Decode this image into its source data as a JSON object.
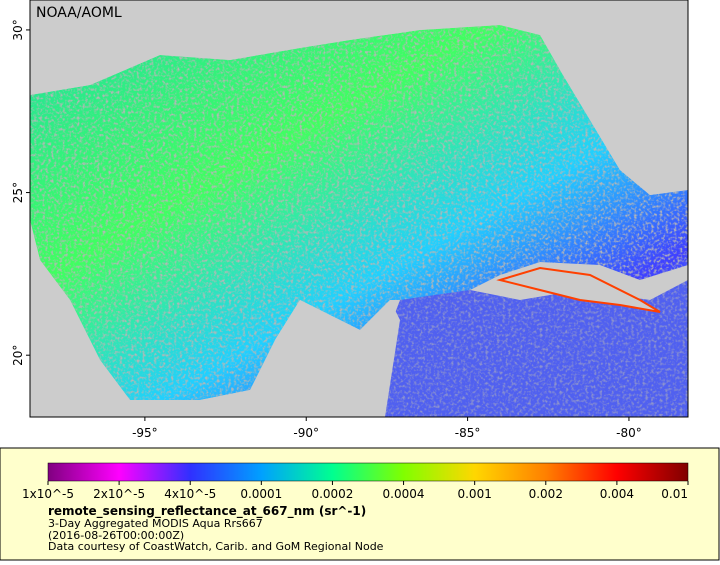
{
  "map": {
    "credit": "NOAA/AOML",
    "lon_range": [
      -98.56,
      -78.17
    ],
    "lat_range": [
      18.1,
      30.92
    ],
    "lat_ticks": [
      {
        "value": 30,
        "label": "30°"
      },
      {
        "value": 25,
        "label": "25°"
      },
      {
        "value": 20,
        "label": "20°"
      }
    ],
    "lon_ticks": [
      {
        "value": -95,
        "label": "-95°"
      },
      {
        "value": -90,
        "label": "-90°"
      },
      {
        "value": -85,
        "label": "-85°"
      },
      {
        "value": -80,
        "label": "-80°"
      }
    ]
  },
  "legend": {
    "colors": [
      "#800080",
      "#ff00ff",
      "#3030ff",
      "#00a0ff",
      "#00ff90",
      "#80ff00",
      "#ffd700",
      "#ff8000",
      "#ff0000",
      "#800000"
    ],
    "scale_labels": [
      "1x10^-5",
      "2x10^-5",
      "4x10^-5",
      "0.0001",
      "0.0002",
      "0.0004",
      "0.001",
      "0.002",
      "0.004",
      "0.01"
    ],
    "variable": "remote_sensing_reflectance_at_667_nm (sr^-1)",
    "dataset": "3-Day Aggregated MODIS Aqua Rrs667",
    "time": "(2016-08-26T00:00:00Z)",
    "courtesy": "Data courtesy of CoastWatch, Carib. and GoM Regional Node"
  }
}
